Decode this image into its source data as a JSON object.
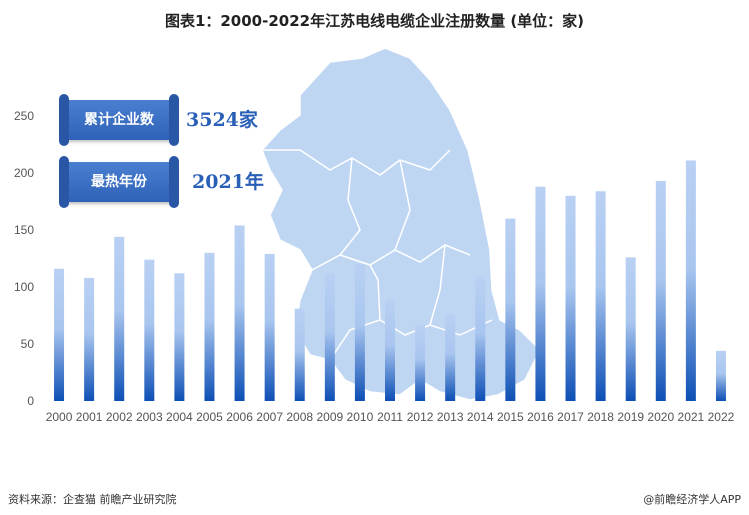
{
  "title": "图表1：2000-2022年江苏电线电缆企业注册数量 (单位：家)",
  "stats": [
    {
      "label": "累计企业数",
      "value": "3524家"
    },
    {
      "label": "最热年份",
      "value": "2021年"
    }
  ],
  "footer": {
    "source": "资料来源：企查猫 前瞻产业研究院",
    "brand": "@前瞻经济学人APP"
  },
  "colors": {
    "bar_top": "#b9d0f3",
    "bar_bottom": "#0d4fb5",
    "map_fill": "#bfd6f3",
    "map_border": "#ffffff",
    "label_box": "#3b6fc4",
    "value_text": "#2a5fb8"
  },
  "chart_data": {
    "type": "bar",
    "title": "图表1：2000-2022年江苏电线电缆企业注册数量 (单位：家)",
    "xlabel": "",
    "ylabel": "",
    "ylim": [
      0,
      250
    ],
    "yticks": [
      0,
      50,
      100,
      150,
      200,
      250
    ],
    "grid": false,
    "categories": [
      "2000",
      "2001",
      "2002",
      "2003",
      "2004",
      "2005",
      "2006",
      "2007",
      "2008",
      "2009",
      "2010",
      "2011",
      "2012",
      "2013",
      "2014",
      "2015",
      "2016",
      "2017",
      "2018",
      "2019",
      "2020",
      "2021",
      "2022"
    ],
    "values": [
      116,
      108,
      144,
      124,
      112,
      130,
      154,
      129,
      81,
      112,
      120,
      89,
      67,
      76,
      109,
      160,
      188,
      180,
      184,
      126,
      193,
      211,
      44
    ]
  }
}
